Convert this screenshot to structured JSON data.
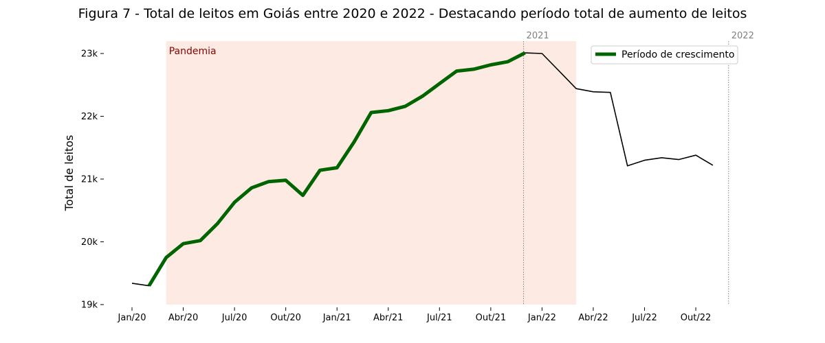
{
  "chart_data": {
    "type": "line",
    "title": "Figura 7 - Total de leitos em Goiás entre 2020 e 2022 - Destacando período total de aumento de leitos",
    "xlabel": "",
    "ylabel": "Total de leitos",
    "ylim": [
      19000,
      23200
    ],
    "y_ticks": [
      19000,
      20000,
      21000,
      22000,
      23000
    ],
    "y_tick_labels": [
      "19k",
      "20k",
      "21k",
      "22k",
      "23k"
    ],
    "x_tick_labels": [
      "Jan/20",
      "Abr/20",
      "Jul/20",
      "Out/20",
      "Jan/21",
      "Abr/21",
      "Jul/21",
      "Out/21",
      "Jan/22",
      "Abr/22",
      "Jul/22",
      "Out/22"
    ],
    "x_ticks": [
      "2020-01",
      "2020-04",
      "2020-07",
      "2020-10",
      "2021-01",
      "2021-04",
      "2021-07",
      "2021-10",
      "2022-01",
      "2022-04",
      "2022-07",
      "2022-10"
    ],
    "x": [
      "2020-01",
      "2020-02",
      "2020-03",
      "2020-04",
      "2020-05",
      "2020-06",
      "2020-07",
      "2020-08",
      "2020-09",
      "2020-10",
      "2020-11",
      "2020-12",
      "2021-01",
      "2021-02",
      "2021-03",
      "2021-04",
      "2021-05",
      "2021-06",
      "2021-07",
      "2021-08",
      "2021-09",
      "2021-10",
      "2021-11",
      "2021-12",
      "2022-01",
      "2022-02",
      "2022-03",
      "2022-04",
      "2022-05",
      "2022-06",
      "2022-07",
      "2022-08",
      "2022-09",
      "2022-10",
      "2022-11"
    ],
    "series": [
      {
        "values": [
          19340,
          19300,
          19750,
          19970,
          20020,
          20290,
          20630,
          20860,
          20960,
          20980,
          20740,
          21140,
          21180,
          21590,
          22060,
          22090,
          22160,
          22320,
          22520,
          22720,
          22750,
          22820,
          22870,
          23010,
          23000,
          22720,
          22440,
          22390,
          22380,
          21210,
          21300,
          21340,
          21310,
          21380,
          21220
        ],
        "color": "#000000"
      },
      {
        "name": "Período de crescimento",
        "start": "2020-02",
        "end": "2021-12",
        "color": "#006400"
      }
    ],
    "shaded_region": {
      "label": "Pandemia",
      "start": "2020-03",
      "end": "2022-03",
      "color": "#fdebe3",
      "label_color": "#8b0000"
    },
    "vlines": [
      {
        "x": "2021-12",
        "label": "2021"
      },
      {
        "x": "2022-12",
        "label": "2022"
      }
    ],
    "legend_placement": "top-right",
    "grid": false
  }
}
